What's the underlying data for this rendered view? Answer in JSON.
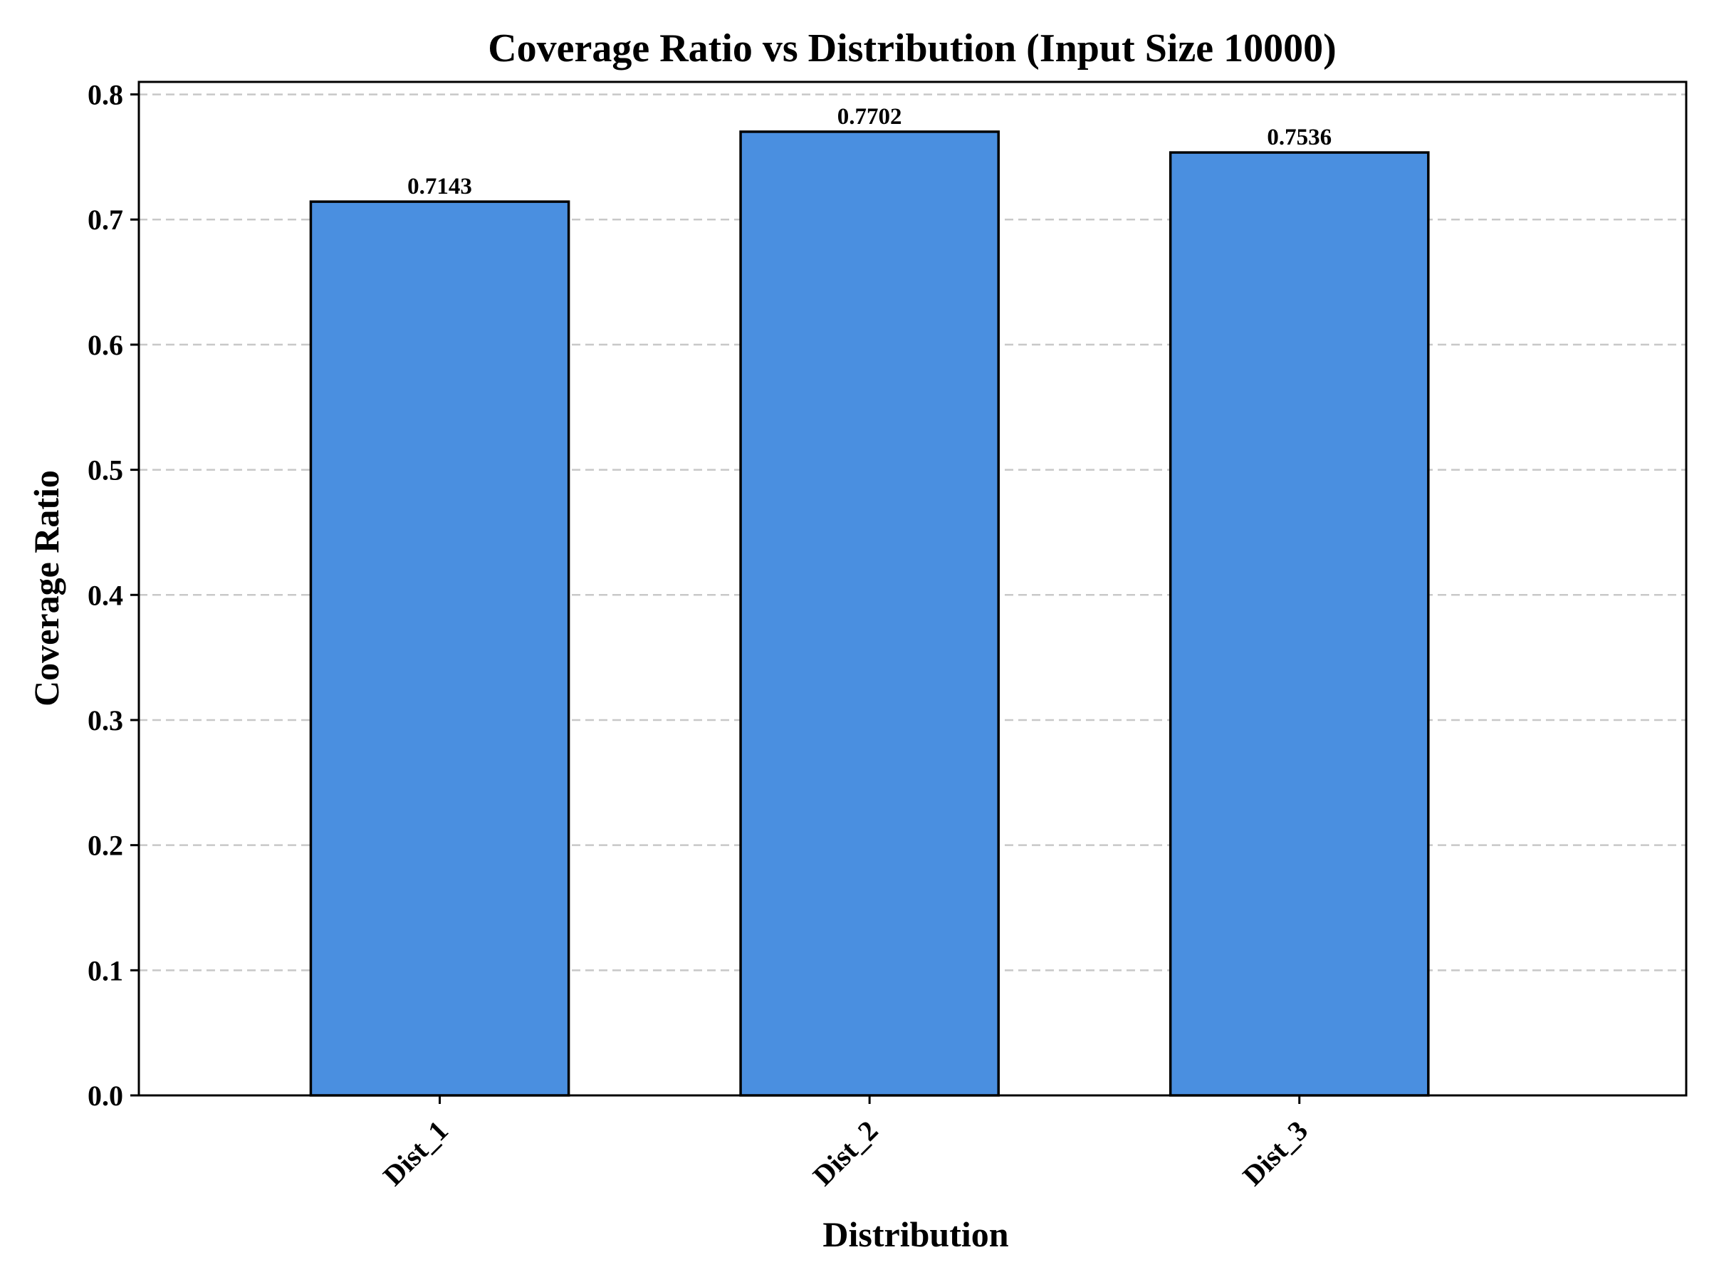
{
  "chart_data": {
    "type": "bar",
    "title": "Coverage Ratio vs Distribution (Input Size 10000)",
    "xlabel": "Distribution",
    "ylabel": "Coverage Ratio",
    "categories": [
      "Dist_1",
      "Dist_2",
      "Dist_3"
    ],
    "values": [
      0.7143,
      0.7702,
      0.7536
    ],
    "data_labels": [
      "0.7143",
      "0.7702",
      "0.7536"
    ],
    "ylim": [
      0,
      0.81
    ],
    "yticks": [
      0.0,
      0.1,
      0.2,
      0.3,
      0.4,
      0.5,
      0.6,
      0.7,
      0.8
    ],
    "ytick_labels": [
      "0.0",
      "0.1",
      "0.2",
      "0.3",
      "0.4",
      "0.5",
      "0.6",
      "0.7",
      "0.8"
    ],
    "grid": "y-dashed",
    "legend": "none",
    "colors": {
      "bar_fill": "#4a8fe0",
      "bar_edge": "#000000",
      "grid": "#c8c8c8",
      "axis": "#000000"
    }
  }
}
